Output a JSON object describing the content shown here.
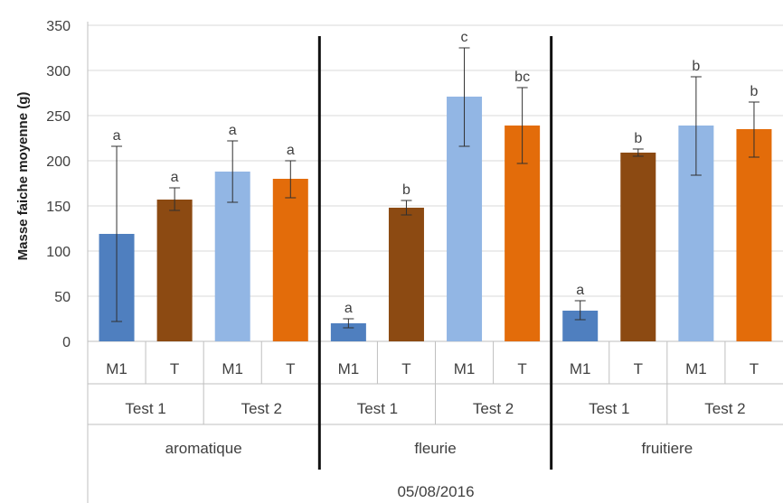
{
  "chart_data": {
    "type": "bar",
    "ylabel": "Masse faiche moyenne (g)",
    "ylim": [
      0,
      350
    ],
    "yticks": [
      "0",
      "50",
      "100",
      "150",
      "200",
      "250",
      "300",
      "350"
    ],
    "grid": true,
    "date_label": "05/08/2016",
    "groups": [
      "aromatique",
      "fleurie",
      "fruitiere"
    ],
    "tests": [
      "Test 1",
      "Test 2"
    ],
    "bars": [
      {
        "group": "aromatique",
        "test": "Test 1",
        "category": "M1",
        "value": 119,
        "err_low": 22,
        "err_high": 216,
        "letter": "a",
        "color": "#4f7fbf"
      },
      {
        "group": "aromatique",
        "test": "Test 1",
        "category": "T",
        "value": 157,
        "err_low": 145,
        "err_high": 170,
        "letter": "a",
        "color": "#8c4a12"
      },
      {
        "group": "aromatique",
        "test": "Test 2",
        "category": "M1",
        "value": 188,
        "err_low": 154,
        "err_high": 222,
        "letter": "a",
        "color": "#92b6e4"
      },
      {
        "group": "aromatique",
        "test": "Test 2",
        "category": "T",
        "value": 180,
        "err_low": 159,
        "err_high": 200,
        "letter": "a",
        "color": "#e36c0a"
      },
      {
        "group": "fleurie",
        "test": "Test 1",
        "category": "M1",
        "value": 20,
        "err_low": 15,
        "err_high": 25,
        "letter": "a",
        "color": "#4f7fbf"
      },
      {
        "group": "fleurie",
        "test": "Test 1",
        "category": "T",
        "value": 148,
        "err_low": 140,
        "err_high": 156,
        "letter": "b",
        "color": "#8c4a12"
      },
      {
        "group": "fleurie",
        "test": "Test 2",
        "category": "M1",
        "value": 271,
        "err_low": 216,
        "err_high": 325,
        "letter": "c",
        "color": "#92b6e4"
      },
      {
        "group": "fleurie",
        "test": "Test 2",
        "category": "T",
        "value": 239,
        "err_low": 197,
        "err_high": 281,
        "letter": "bc",
        "color": "#e36c0a"
      },
      {
        "group": "fruitiere",
        "test": "Test 1",
        "category": "M1",
        "value": 34,
        "err_low": 24,
        "err_high": 45,
        "letter": "a",
        "color": "#4f7fbf"
      },
      {
        "group": "fruitiere",
        "test": "Test 1",
        "category": "T",
        "value": 209,
        "err_low": 205,
        "err_high": 213,
        "letter": "b",
        "color": "#8c4a12"
      },
      {
        "group": "fruitiere",
        "test": "Test 2",
        "category": "M1",
        "value": 239,
        "err_low": 184,
        "err_high": 293,
        "letter": "b",
        "color": "#92b6e4"
      },
      {
        "group": "fruitiere",
        "test": "Test 2",
        "category": "T",
        "value": 235,
        "err_low": 204,
        "err_high": 265,
        "letter": "b",
        "color": "#e36c0a"
      }
    ]
  }
}
